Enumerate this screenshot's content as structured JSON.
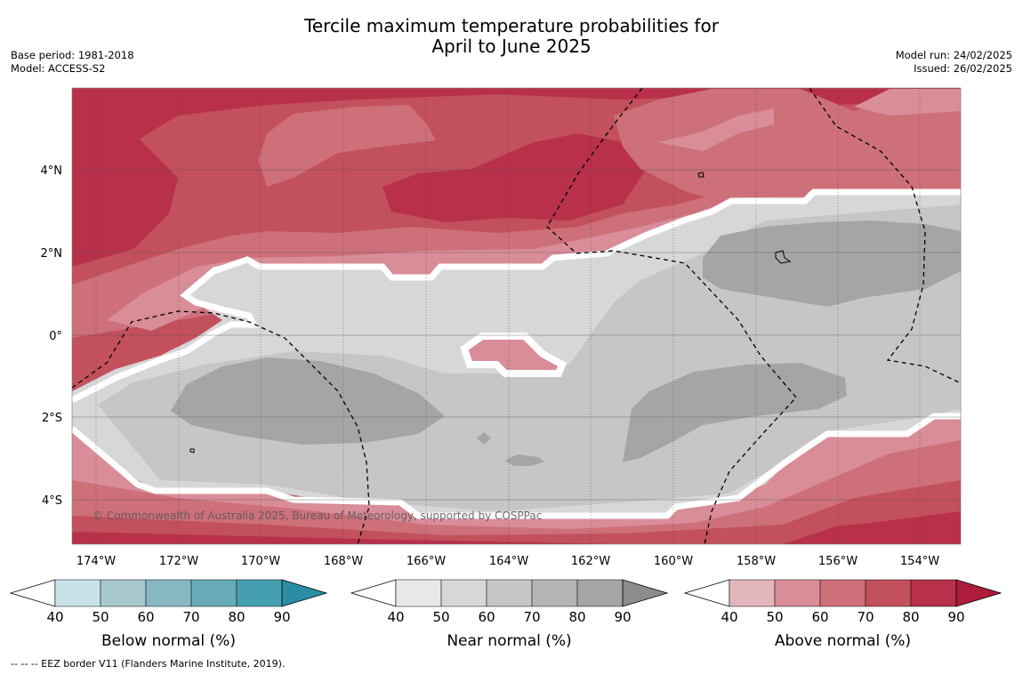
{
  "header": {
    "title_line1": "Tercile maximum temperature probabilities for",
    "title_line2": "April to June 2025",
    "base_period": "Base period: 1981-2018",
    "model": "Model: ACCESS-S2",
    "model_run": "Model run: 24/02/2025",
    "issued": "Issued: 26/02/2025"
  },
  "map": {
    "lon_labels": [
      "174°W",
      "172°W",
      "170°W",
      "168°W",
      "166°W",
      "164°W",
      "162°W",
      "160°W",
      "158°W",
      "156°W",
      "154°W"
    ],
    "lat_labels": [
      "4°N",
      "2°N",
      "0°",
      "2°S",
      "4°S"
    ],
    "copyright": "© Commonwealth of Australia 2025, Bureau of Meteorology, supported by COSPPac",
    "lon_range": [
      -174.6,
      -153.0
    ],
    "lat_range": [
      -5.0,
      6.0
    ]
  },
  "colorbars": [
    {
      "label": "Below normal (%)",
      "ticks": [
        "40",
        "50",
        "60",
        "70",
        "80",
        "90"
      ],
      "colors": [
        "#ffffff",
        "#c9e2e8",
        "#a6c8cd",
        "#87b7c3",
        "#68abb9",
        "#469fb0",
        "#2a8da3"
      ]
    },
    {
      "label": "Near normal (%)",
      "ticks": [
        "40",
        "50",
        "60",
        "70",
        "80",
        "90"
      ],
      "colors": [
        "#ffffff",
        "#e8e8e8",
        "#d7d7d7",
        "#c6c6c6",
        "#b5b5b5",
        "#a5a5a5",
        "#8c8c8c"
      ]
    },
    {
      "label": "Above normal (%)",
      "ticks": [
        "40",
        "50",
        "60",
        "70",
        "80",
        "90"
      ],
      "colors": [
        "#ffffff",
        "#e3b6bd",
        "#d98d98",
        "#cd7079",
        "#c3505d",
        "#b8304a",
        "#ad1c3a"
      ]
    }
  ],
  "footnote": "--  --  -- EEZ border V11 (Flanders Marine Institute, 2019)."
}
